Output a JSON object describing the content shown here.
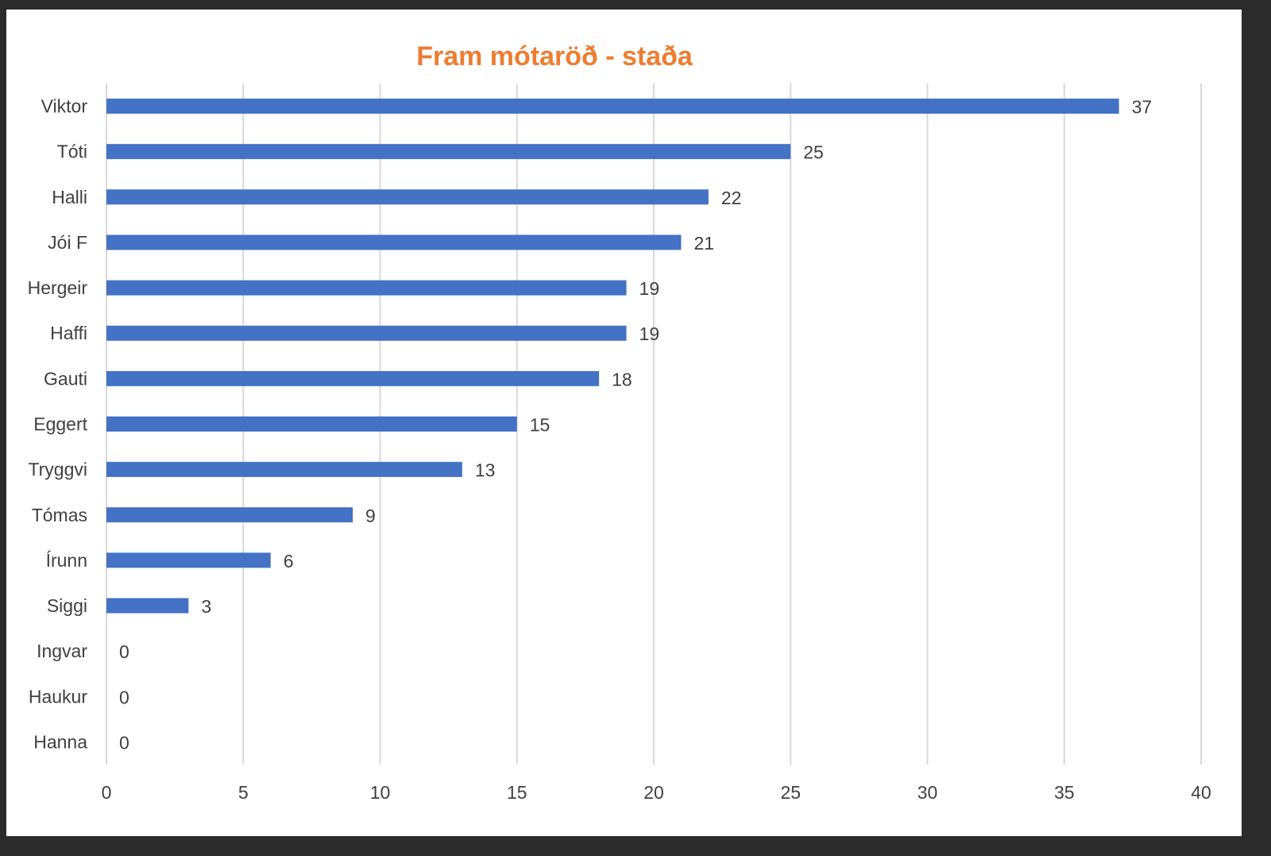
{
  "chart_data": {
    "type": "bar",
    "orientation": "horizontal",
    "title": "Fram mótaröð - staða",
    "xlabel": "",
    "ylabel": "",
    "categories": [
      "Viktor",
      "Tóti",
      "Halli",
      "Jói F",
      "Hergeir",
      "Haffi",
      "Gauti",
      "Eggert",
      "Tryggvi",
      "Tómas",
      "Írunn",
      "Siggi",
      "Ingvar",
      "Haukur",
      "Hanna"
    ],
    "values": [
      37,
      25,
      22,
      21,
      19,
      19,
      18,
      15,
      13,
      9,
      6,
      3,
      0,
      0,
      0
    ],
    "xlim": [
      0,
      40
    ],
    "xticks": [
      "0",
      "5",
      "10",
      "15",
      "20",
      "25",
      "30",
      "35",
      "40"
    ],
    "grid": "vertical",
    "legend": "none",
    "data_labels": true,
    "colors": {
      "bar": "#4472c4",
      "title": "#ed7d31",
      "grid": "#d9d9d9",
      "text": "#404040"
    }
  }
}
